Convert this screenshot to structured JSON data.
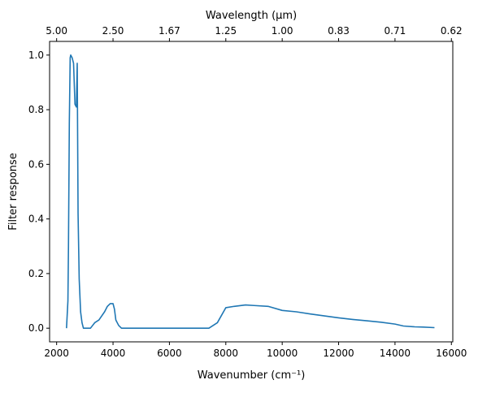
{
  "chart_data": {
    "type": "line",
    "xlabel": "Wavenumber (cm⁻¹)",
    "ylabel": "Filter response",
    "top_xlabel": "Wavelength (μm)",
    "xlim": [
      1750,
      16050
    ],
    "ylim": [
      -0.05,
      1.05
    ],
    "xticks": [
      2000,
      4000,
      6000,
      8000,
      10000,
      12000,
      14000,
      16000
    ],
    "xtick_labels": [
      "2000",
      "4000",
      "6000",
      "8000",
      "10000",
      "12000",
      "14000",
      "16000"
    ],
    "yticks": [
      0.0,
      0.2,
      0.4,
      0.6,
      0.8,
      1.0
    ],
    "ytick_labels": [
      "0.0",
      "0.2",
      "0.4",
      "0.6",
      "0.8",
      "1.0"
    ],
    "top_ticks_wavenumber": [
      2000,
      4000,
      6000,
      8000,
      10000,
      12000,
      14000,
      16000
    ],
    "top_tick_labels": [
      "5.00",
      "2.50",
      "1.67",
      "1.25",
      "1.00",
      "0.83",
      "0.71",
      "0.62"
    ],
    "grid": false,
    "series": [
      {
        "color": "#1f77b4",
        "x": [
          2350,
          2400,
          2420,
          2450,
          2480,
          2500,
          2550,
          2600,
          2650,
          2700,
          2730,
          2760,
          2800,
          2850,
          2900,
          2950,
          3000,
          3100,
          3200,
          3350,
          3500,
          3700,
          3800,
          3900,
          3950,
          4000,
          4050,
          4100,
          4200,
          4300,
          4400,
          5000,
          6000,
          7000,
          7400,
          7700,
          8000,
          8300,
          8700,
          9000,
          9500,
          10000,
          10500,
          11000,
          11500,
          12000,
          12500,
          13000,
          13500,
          14000,
          14300,
          14700,
          15000,
          15400
        ],
        "y": [
          0.0,
          0.1,
          0.3,
          0.75,
          0.99,
          1.0,
          0.99,
          0.97,
          0.82,
          0.81,
          0.97,
          0.42,
          0.18,
          0.06,
          0.02,
          0.0,
          0.0,
          0.0,
          0.0,
          0.02,
          0.03,
          0.06,
          0.08,
          0.09,
          0.09,
          0.09,
          0.07,
          0.03,
          0.01,
          0.0,
          0.0,
          0.0,
          0.0,
          0.0,
          0.0,
          0.02,
          0.075,
          0.08,
          0.085,
          0.083,
          0.08,
          0.065,
          0.06,
          0.052,
          0.045,
          0.038,
          0.032,
          0.027,
          0.022,
          0.015,
          0.008,
          0.005,
          0.004,
          0.002
        ]
      }
    ]
  }
}
